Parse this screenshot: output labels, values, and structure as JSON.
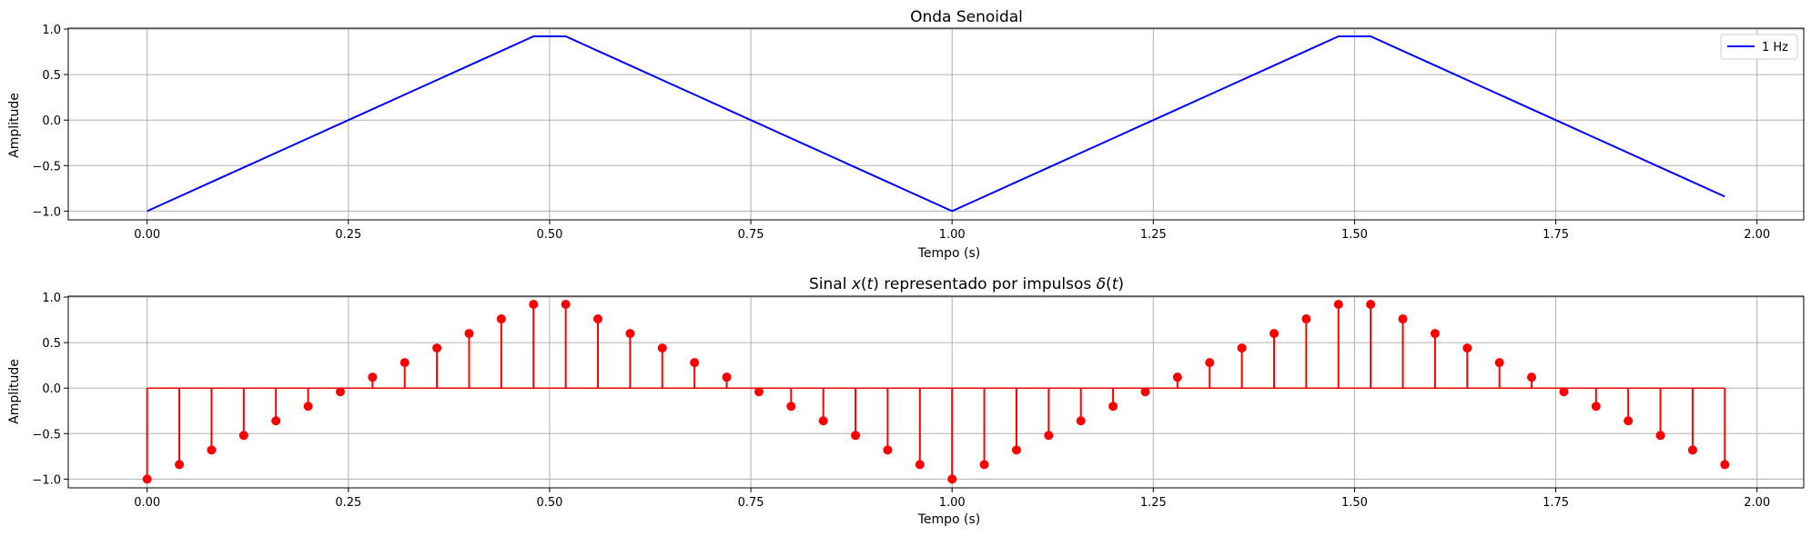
{
  "chart_data": [
    {
      "type": "line",
      "title": "Onda Senoidal",
      "xlabel": "Tempo (s)",
      "ylabel": "Amplitude",
      "xlim": [
        -0.098,
        2.058
      ],
      "ylim": [
        -1.096,
        1.01
      ],
      "xticks": [
        0.0,
        0.25,
        0.5,
        0.75,
        1.0,
        1.25,
        1.5,
        1.75,
        2.0
      ],
      "xtick_labels": [
        "0.00",
        "0.25",
        "0.50",
        "0.75",
        "1.00",
        "1.25",
        "1.50",
        "1.75",
        "2.00"
      ],
      "yticks": [
        -1.0,
        -0.5,
        0.0,
        0.5,
        1.0
      ],
      "ytick_labels": [
        "−1.0",
        "−0.5",
        "0.0",
        "0.5",
        "1.0"
      ],
      "grid": true,
      "legend": "upper right",
      "series": [
        {
          "name": "1 Hz",
          "color": "#0000ff",
          "x": [
            0.0,
            0.04,
            0.08,
            0.12,
            0.16,
            0.2,
            0.24,
            0.28,
            0.32,
            0.36,
            0.4,
            0.44,
            0.48,
            0.52,
            0.56,
            0.6,
            0.64,
            0.68,
            0.72,
            0.76,
            0.8,
            0.84,
            0.88,
            0.92,
            0.96,
            1.0,
            1.04,
            1.08,
            1.12,
            1.16,
            1.2,
            1.24,
            1.28,
            1.32,
            1.36,
            1.4,
            1.44,
            1.48,
            1.52,
            1.56,
            1.6,
            1.64,
            1.68,
            1.72,
            1.76,
            1.8,
            1.84,
            1.88,
            1.92,
            1.96
          ],
          "y": [
            -1.0,
            -0.84,
            -0.68,
            -0.52,
            -0.36,
            -0.2,
            -0.04,
            0.12,
            0.28,
            0.44,
            0.6,
            0.76,
            0.92,
            0.92,
            0.76,
            0.6,
            0.44,
            0.28,
            0.12,
            -0.04,
            -0.2,
            -0.36,
            -0.52,
            -0.68,
            -0.84,
            -1.0,
            -0.84,
            -0.68,
            -0.52,
            -0.36,
            -0.2,
            -0.04,
            0.12,
            0.28,
            0.44,
            0.6,
            0.76,
            0.92,
            0.92,
            0.76,
            0.6,
            0.44,
            0.28,
            0.12,
            -0.04,
            -0.2,
            -0.36,
            -0.52,
            -0.68,
            -0.84
          ]
        }
      ]
    },
    {
      "type": "stem",
      "title": "Sinal x(t) representado por impulsos δ(t)",
      "title_parts": [
        "Sinal ",
        "x",
        "(",
        "t",
        ") representado por impulsos ",
        "δ",
        "(",
        "t",
        ")"
      ],
      "xlabel": "Tempo (s)",
      "ylabel": "Amplitude",
      "xlim": [
        -0.098,
        2.058
      ],
      "ylim": [
        -1.096,
        1.01
      ],
      "xticks": [
        0.0,
        0.25,
        0.5,
        0.75,
        1.0,
        1.25,
        1.5,
        1.75,
        2.0
      ],
      "xtick_labels": [
        "0.00",
        "0.25",
        "0.50",
        "0.75",
        "1.00",
        "1.25",
        "1.50",
        "1.75",
        "2.00"
      ],
      "yticks": [
        -1.0,
        -0.5,
        0.0,
        0.5,
        1.0
      ],
      "ytick_labels": [
        "−1.0",
        "−0.5",
        "0.0",
        "0.5",
        "1.0"
      ],
      "grid": true,
      "series": [
        {
          "color": "#ff0000",
          "x": [
            0.0,
            0.04,
            0.08,
            0.12,
            0.16,
            0.2,
            0.24,
            0.28,
            0.32,
            0.36,
            0.4,
            0.44,
            0.48,
            0.52,
            0.56,
            0.6,
            0.64,
            0.68,
            0.72,
            0.76,
            0.8,
            0.84,
            0.88,
            0.92,
            0.96,
            1.0,
            1.04,
            1.08,
            1.12,
            1.16,
            1.2,
            1.24,
            1.28,
            1.32,
            1.36,
            1.4,
            1.44,
            1.48,
            1.52,
            1.56,
            1.6,
            1.64,
            1.68,
            1.72,
            1.76,
            1.8,
            1.84,
            1.88,
            1.92,
            1.96
          ],
          "y": [
            -1.0,
            -0.84,
            -0.68,
            -0.52,
            -0.36,
            -0.2,
            -0.04,
            0.12,
            0.28,
            0.44,
            0.6,
            0.76,
            0.92,
            0.92,
            0.76,
            0.6,
            0.44,
            0.28,
            0.12,
            -0.04,
            -0.2,
            -0.36,
            -0.52,
            -0.68,
            -0.84,
            -1.0,
            -0.84,
            -0.68,
            -0.52,
            -0.36,
            -0.2,
            -0.04,
            0.12,
            0.28,
            0.44,
            0.6,
            0.76,
            0.92,
            0.92,
            0.76,
            0.6,
            0.44,
            0.28,
            0.12,
            -0.04,
            -0.2,
            -0.36,
            -0.52,
            -0.68,
            -0.84
          ]
        }
      ]
    }
  ]
}
